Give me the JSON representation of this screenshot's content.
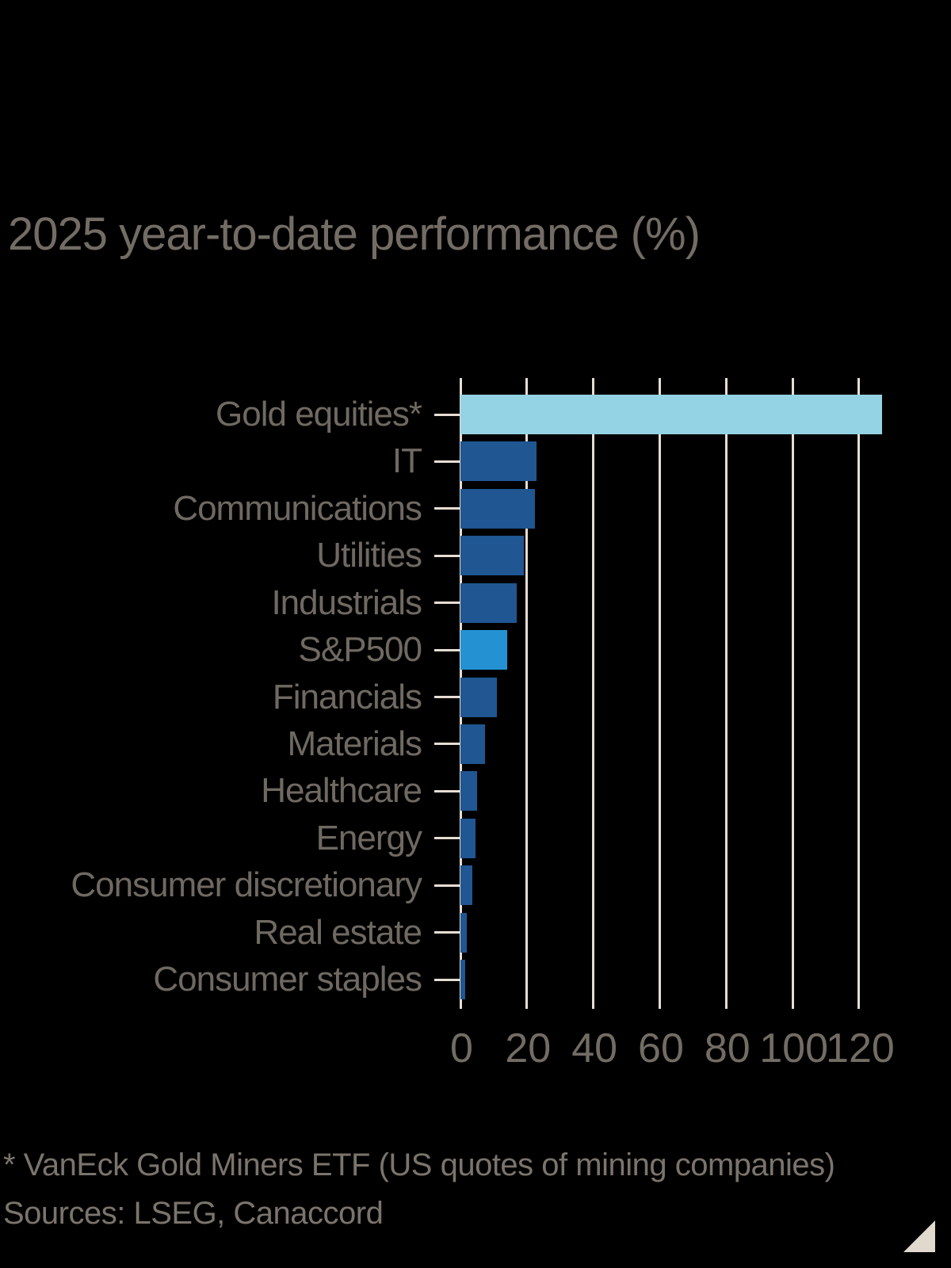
{
  "title": "2025 year-to-date performance (%)",
  "footnote": {
    "line1": "* VanEck Gold Miners ETF (US quotes of mining companies)",
    "line2": "Sources: LSEG, Canaccord"
  },
  "logo": "corner-triangle",
  "colors": {
    "background": "#000000",
    "title_text": "#736C65",
    "label_text": "#6F6962",
    "tick_text": "#736C64",
    "footnote_text": "#7B746C",
    "gridline": "#E6DDD3",
    "bar_dark_blue": "#205692",
    "bar_highlight_blue": "#2492D2",
    "bar_light_blue": "#94D3E3",
    "logo_triangle": "#E2D9CE"
  },
  "chart_data": {
    "type": "bar",
    "orientation": "horizontal",
    "title": "2025 year-to-date performance (%)",
    "unit": "%",
    "categories": [
      "Gold equities*",
      "IT",
      "Communications",
      "Utilities",
      "Industrials",
      "S&P500",
      "Financials",
      "Materials",
      "Healthcare",
      "Energy",
      "Consumer discretionary",
      "Real estate",
      "Consumer staples"
    ],
    "values": [
      127,
      23,
      22.5,
      19,
      17,
      14,
      11,
      7.5,
      5,
      4.5,
      3.5,
      2,
      1.5
    ],
    "bar_colors": [
      "#94D3E3",
      "#205692",
      "#205692",
      "#205692",
      "#205692",
      "#2492D2",
      "#205692",
      "#205692",
      "#205692",
      "#205692",
      "#205692",
      "#205692",
      "#205692"
    ],
    "xticks": [
      0,
      20,
      40,
      60,
      80,
      100,
      120
    ],
    "xlim": [
      0,
      136
    ],
    "xlabel": "",
    "ylabel": "",
    "grid": true,
    "legend": "none"
  }
}
